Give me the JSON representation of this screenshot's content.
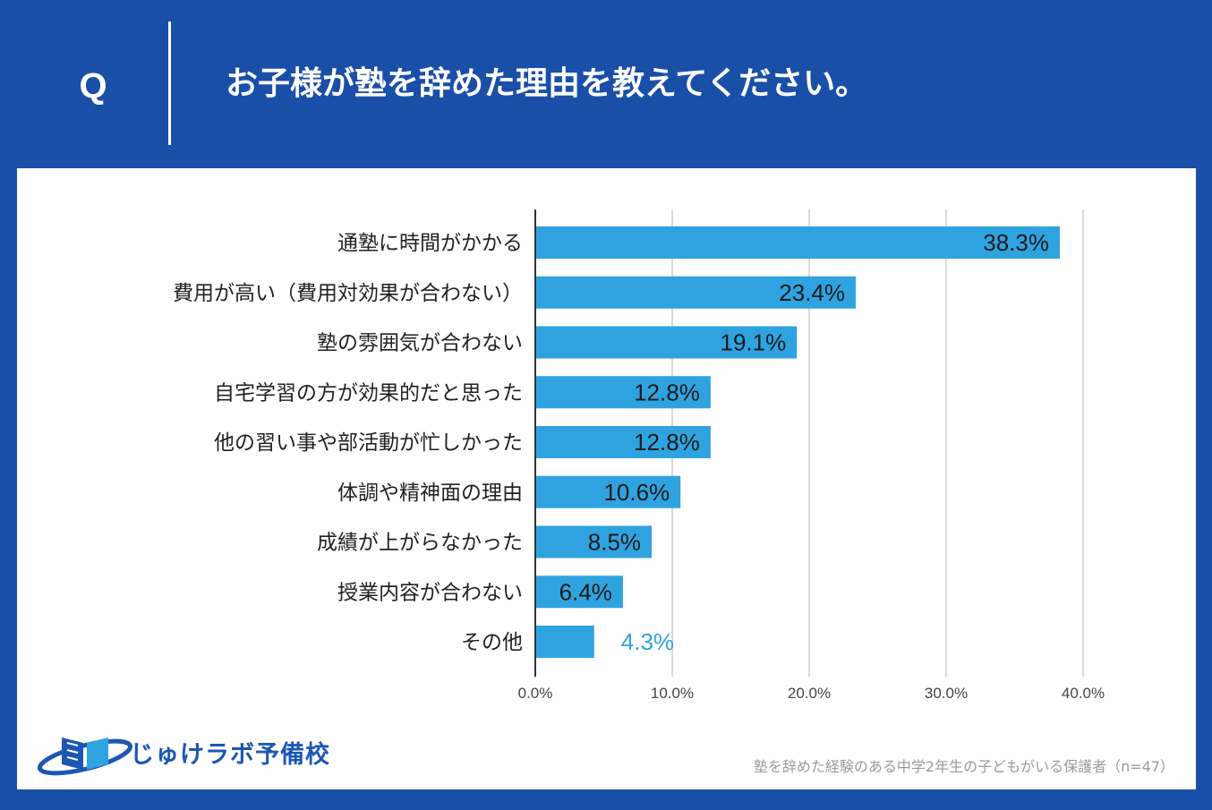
{
  "header": {
    "q_letter": "Q",
    "question": "お子様が塾を辞めた理由を教えてください。"
  },
  "chart_data": {
    "type": "bar",
    "orientation": "horizontal",
    "categories": [
      "通塾に時間がかかる",
      "費用が高い（費用対効果が合わない）",
      "塾の雰囲気が合わない",
      "自宅学習の方が効果的だと思った",
      "他の習い事や部活動が忙しかった",
      "体調や精神面の理由",
      "成績が上がらなかった",
      "授業内容が合わない",
      "その他"
    ],
    "values": [
      38.3,
      23.4,
      19.1,
      12.8,
      12.8,
      10.6,
      8.5,
      6.4,
      4.3
    ],
    "value_labels": [
      "38.3%",
      "23.4%",
      "19.1%",
      "12.8%",
      "12.8%",
      "10.6%",
      "8.5%",
      "6.4%",
      "4.3%"
    ],
    "xlim": [
      0,
      40
    ],
    "xticks": [
      0,
      10,
      20,
      30,
      40
    ],
    "xtick_labels": [
      "0.0%",
      "10.0%",
      "20.0%",
      "30.0%",
      "40.0%"
    ],
    "grid": true,
    "bar_color": "#2fa3e0",
    "outside_label_color": "#2fa3e0"
  },
  "logo": {
    "text": "じゅけラボ予備校",
    "color": "#1c57b3"
  },
  "footnote": "塾を辞めた経験のある中学2年生の子どもがいる保護者（n=47）"
}
